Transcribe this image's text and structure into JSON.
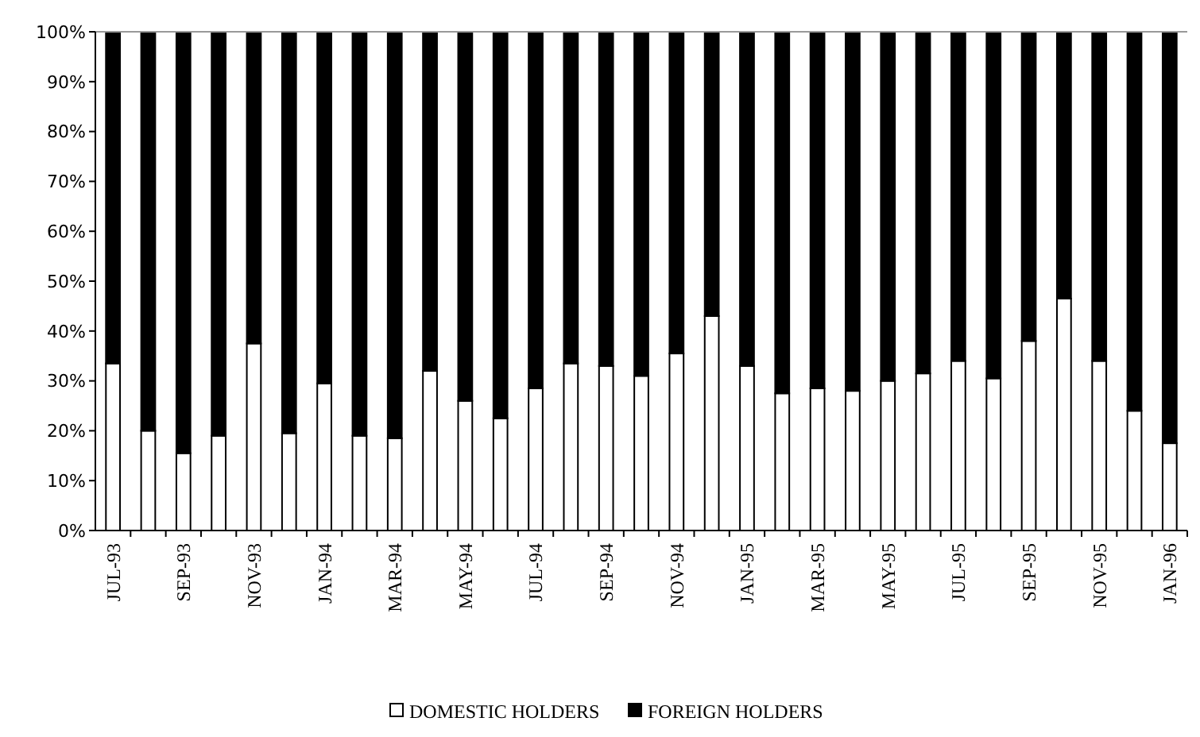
{
  "chart_data": {
    "type": "bar",
    "stacked": true,
    "categories": [
      "JUL-93",
      null,
      "SEP-93",
      null,
      "NOV-93",
      null,
      "JAN-94",
      null,
      "MAR-94",
      null,
      "MAY-94",
      null,
      "JUL-94",
      null,
      "SEP-94",
      null,
      "NOV-94",
      null,
      "JAN-95",
      null,
      "MAR-95",
      null,
      "MAY-95",
      null,
      "JUL-95",
      null,
      "SEP-95",
      null,
      "NOV-95",
      null,
      "JAN-96"
    ],
    "series": [
      {
        "name": "DOMESTIC HOLDERS",
        "color": "#ffffff",
        "values": [
          33.5,
          20,
          15.5,
          19,
          37.5,
          19.5,
          29.5,
          19,
          18.5,
          32,
          26,
          22.5,
          28.5,
          33.5,
          33,
          31,
          35.5,
          43,
          33,
          27.5,
          28.5,
          28,
          30,
          31.5,
          34,
          30.5,
          38,
          46.5,
          34,
          24,
          17.5
        ]
      },
      {
        "name": "FOREIGN HOLDERS",
        "color": "#000000",
        "values": [
          66.5,
          80,
          84.5,
          81,
          62.5,
          80.5,
          70.5,
          81,
          81.5,
          68,
          74,
          77.5,
          71.5,
          66.5,
          67,
          69,
          64.5,
          57,
          67,
          72.5,
          71.5,
          72,
          70,
          68.5,
          66,
          69.5,
          62,
          53.5,
          66,
          76,
          82.5
        ]
      }
    ],
    "ylim": [
      0,
      100
    ],
    "yticks": [
      {
        "value": 0,
        "label": "0%"
      },
      {
        "value": 10,
        "label": "10%"
      },
      {
        "value": 20,
        "label": "20%"
      },
      {
        "value": 30,
        "label": "30%"
      },
      {
        "value": 40,
        "label": "40%"
      },
      {
        "value": 50,
        "label": "50%"
      },
      {
        "value": 60,
        "label": "60%"
      },
      {
        "value": 70,
        "label": "70%"
      },
      {
        "value": 80,
        "label": "80%"
      },
      {
        "value": 90,
        "label": "90%"
      },
      {
        "value": 100,
        "label": "100%"
      }
    ],
    "grid": false,
    "legend": "bottom"
  }
}
